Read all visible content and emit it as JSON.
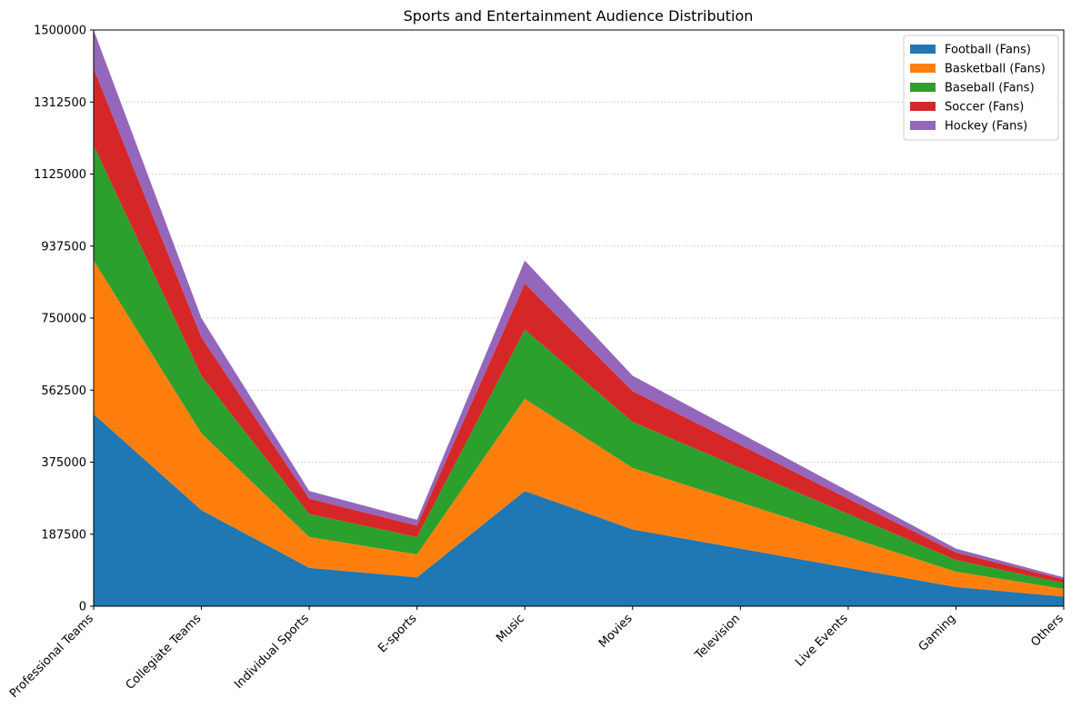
{
  "chart_data": {
    "type": "area",
    "stacked": true,
    "title": "Sports and Entertainment Audience Distribution",
    "xlabel": "",
    "ylabel": "",
    "categories": [
      "Professional Teams",
      "Collegiate Teams",
      "Individual Sports",
      "E-sports",
      "Music",
      "Movies",
      "Television",
      "Live Events",
      "Gaming",
      "Others"
    ],
    "ylim": [
      0,
      1500000
    ],
    "yticks": [
      "0",
      "187500",
      "375000",
      "562500",
      "750000",
      "937500",
      "1125000",
      "1312500",
      "1500000"
    ],
    "grid": "y-dotted",
    "legend_position": "top-right",
    "series": [
      {
        "name": "Football (Fans)",
        "color": "#1f77b4",
        "values": [
          500000,
          250000,
          100000,
          75000,
          300000,
          200000,
          150000,
          100000,
          50000,
          25000
        ]
      },
      {
        "name": "Basketball (Fans)",
        "color": "#ff7f0e",
        "values": [
          400000,
          200000,
          80000,
          60000,
          240000,
          160000,
          120000,
          80000,
          40000,
          20000
        ]
      },
      {
        "name": "Baseball (Fans)",
        "color": "#2ca02c",
        "values": [
          300000,
          150000,
          60000,
          45000,
          180000,
          120000,
          90000,
          60000,
          30000,
          15000
        ]
      },
      {
        "name": "Soccer (Fans)",
        "color": "#d62728",
        "values": [
          200000,
          100000,
          40000,
          30000,
          120000,
          80000,
          60000,
          40000,
          20000,
          10000
        ]
      },
      {
        "name": "Hockey (Fans)",
        "color": "#9467bd",
        "values": [
          100000,
          50000,
          20000,
          15000,
          60000,
          40000,
          30000,
          20000,
          10000,
          5000
        ]
      }
    ]
  }
}
